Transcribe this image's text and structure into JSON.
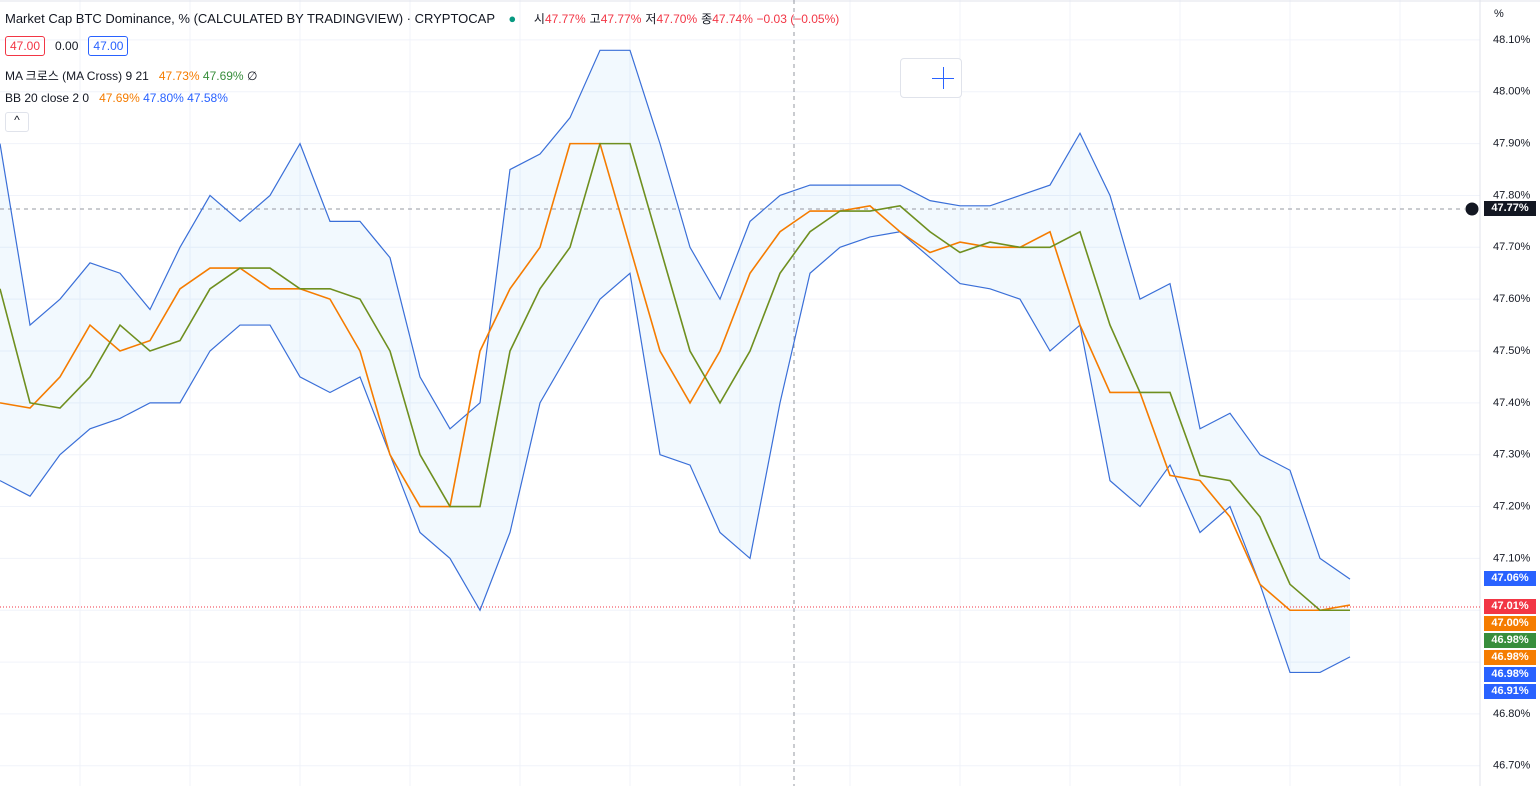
{
  "header": {
    "title": "Market Cap BTC Dominance, % (CALCULATED BY TRADINGVIEW) · CRYPTOCAP",
    "ohlc": [
      {
        "k": "시",
        "v": "47.77%"
      },
      {
        "k": "고",
        "v": "47.77%"
      },
      {
        "k": "저",
        "v": "47.70%"
      },
      {
        "k": "종",
        "v": "47.74%"
      }
    ],
    "change": "−0.03 (−0.05%)",
    "buttons": [
      "47.00",
      "0.00",
      "47.00"
    ],
    "ma": {
      "label": "MA 크로스 (MA Cross) 9 21",
      "v1": "47.73%",
      "v2": "47.69%",
      "v3": "∅"
    },
    "bb": {
      "label": "BB 20 close 2 0",
      "v1": "47.69%",
      "v2": "47.80%",
      "v3": "47.58%"
    },
    "collapse": "^"
  },
  "axis_unit": "%",
  "price_tags": [
    {
      "label": "47.77%",
      "color": "#131722"
    },
    {
      "label": "47.06%",
      "color": "#2962ff"
    },
    {
      "label": "47.01%",
      "color": "#f23645"
    },
    {
      "label": "47.00%",
      "color": "#f57c00"
    },
    {
      "label": "46.98%",
      "color": "#388e3c"
    },
    {
      "label": "46.98%",
      "color": "#f57c00"
    },
    {
      "label": "46.98%",
      "color": "#2962ff"
    },
    {
      "label": "46.91%",
      "color": "#2962ff"
    }
  ],
  "chart_data": {
    "type": "line",
    "ylim": [
      46.661,
      48.177
    ],
    "yticks": [
      {
        "value": 46.7,
        "label": "46.70%"
      },
      {
        "value": 46.8,
        "label": "46.80%"
      },
      {
        "value": 46.9,
        "label": "46.90%"
      },
      {
        "value": 47.0,
        "label": "47.00%"
      },
      {
        "value": 47.1,
        "label": "47.10%"
      },
      {
        "value": 47.2,
        "label": "47.20%"
      },
      {
        "value": 47.3,
        "label": "47.30%"
      },
      {
        "value": 47.4,
        "label": "47.40%"
      },
      {
        "value": 47.5,
        "label": "47.50%"
      },
      {
        "value": 47.6,
        "label": "47.60%"
      },
      {
        "value": 47.7,
        "label": "47.70%"
      },
      {
        "value": 47.8,
        "label": "47.80%"
      },
      {
        "value": 47.9,
        "label": "47.90%"
      },
      {
        "value": 48.0,
        "label": "48.00%"
      },
      {
        "value": 48.1,
        "label": "48.10%"
      }
    ],
    "grid": true,
    "series": [
      {
        "color": "#3a6fd8",
        "values": [
          47.9,
          47.55,
          47.6,
          47.67,
          47.65,
          47.58,
          47.7,
          47.8,
          47.75,
          47.8,
          47.9,
          47.75,
          47.75,
          47.68,
          47.45,
          47.35,
          47.4,
          47.85,
          47.88,
          47.95,
          48.08,
          48.08,
          47.9,
          47.7,
          47.6,
          47.75,
          47.8,
          47.82,
          47.82,
          47.82,
          47.82,
          47.79,
          47.78,
          47.78,
          47.8,
          47.82,
          47.92,
          47.8,
          47.6,
          47.63,
          47.35,
          47.38,
          47.3,
          47.27,
          47.1,
          47.06
        ]
      },
      {
        "color": "#3a6fd8",
        "values": [
          47.25,
          47.22,
          47.3,
          47.35,
          47.37,
          47.4,
          47.4,
          47.5,
          47.55,
          47.55,
          47.45,
          47.42,
          47.45,
          47.3,
          47.15,
          47.1,
          47.0,
          47.15,
          47.4,
          47.5,
          47.6,
          47.65,
          47.3,
          47.28,
          47.15,
          47.1,
          47.4,
          47.65,
          47.7,
          47.72,
          47.73,
          47.68,
          47.63,
          47.62,
          47.6,
          47.5,
          47.55,
          47.25,
          47.2,
          47.28,
          47.15,
          47.2,
          47.05,
          46.88,
          46.88,
          46.91
        ]
      },
      {
        "color": "#f57c00",
        "values": [
          47.4,
          47.39,
          47.45,
          47.55,
          47.5,
          47.52,
          47.62,
          47.66,
          47.66,
          47.62,
          47.62,
          47.6,
          47.5,
          47.3,
          47.2,
          47.2,
          47.5,
          47.62,
          47.7,
          47.9,
          47.9,
          47.7,
          47.5,
          47.4,
          47.5,
          47.65,
          47.73,
          47.77,
          47.77,
          47.78,
          47.73,
          47.69,
          47.71,
          47.7,
          47.7,
          47.73,
          47.55,
          47.42,
          47.42,
          47.26,
          47.25,
          47.18,
          47.05,
          47.0,
          47.0,
          47.01
        ]
      },
      {
        "color": "#6f8f1f",
        "values": [
          47.62,
          47.4,
          47.39,
          47.45,
          47.55,
          47.5,
          47.52,
          47.62,
          47.66,
          47.66,
          47.62,
          47.62,
          47.6,
          47.5,
          47.3,
          47.2,
          47.2,
          47.5,
          47.62,
          47.7,
          47.9,
          47.9,
          47.7,
          47.5,
          47.4,
          47.5,
          47.65,
          47.73,
          47.77,
          47.77,
          47.78,
          47.73,
          47.69,
          47.71,
          47.7,
          47.7,
          47.73,
          47.55,
          47.42,
          47.42,
          47.26,
          47.25,
          47.18,
          47.05,
          47.0,
          47.0
        ]
      }
    ]
  }
}
